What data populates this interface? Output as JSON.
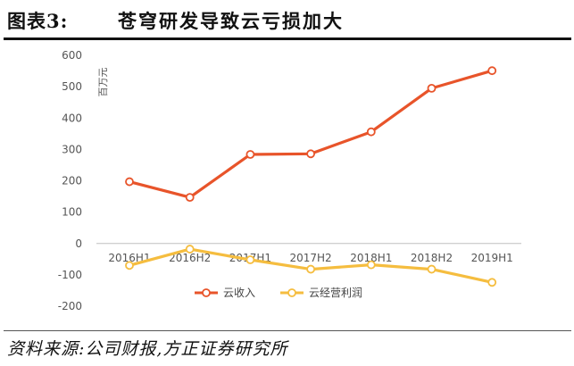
{
  "header": {
    "figure_number": "图表3:",
    "title": "苍穹研发导致云亏损加大"
  },
  "footer": {
    "source": "资料来源:公司财报,方正证券研究所"
  },
  "chart_data": {
    "type": "line",
    "categories": [
      "2016H1",
      "2016H2",
      "2017H1",
      "2017H2",
      "2018H1",
      "2018H2",
      "2019H1"
    ],
    "unit_label": "百万元",
    "ylim": [
      -200,
      600
    ],
    "yticks": [
      -200,
      -100,
      0,
      100,
      200,
      300,
      400,
      500,
      600
    ],
    "grid": false,
    "legend_position": "bottom-center",
    "series": [
      {
        "name": "云收入",
        "color": "#e8542a",
        "values": [
          197,
          147,
          284,
          286,
          356,
          495,
          551
        ]
      },
      {
        "name": "云经营利润",
        "color": "#f5bd3f",
        "values": [
          -70,
          -18,
          -52,
          -82,
          -68,
          -82,
          -124
        ]
      }
    ]
  }
}
